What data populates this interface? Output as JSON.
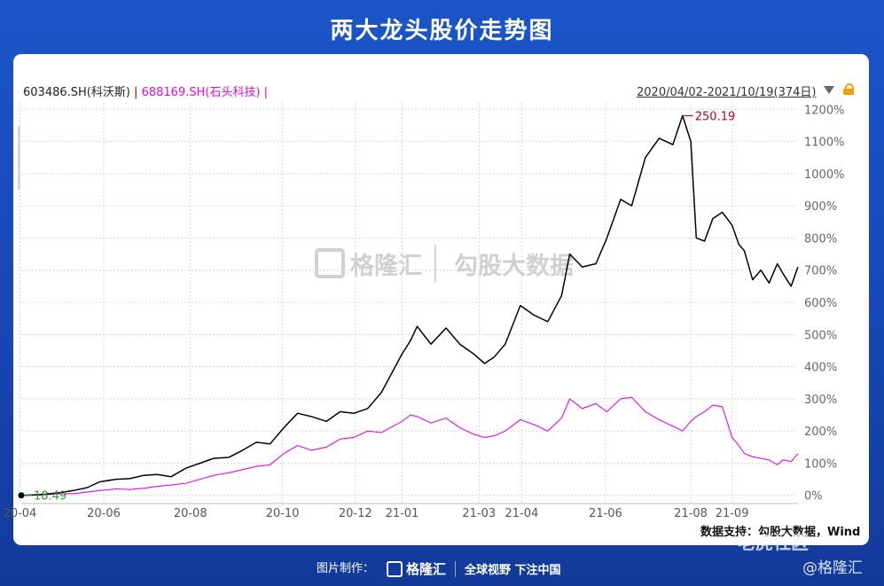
{
  "page": {
    "title": "两大龙头股价走势图",
    "range_label": "2020/04/02-2021/10/19(374日)",
    "source": "数据支持：勾股大数据，Wind",
    "footer_made": "图片制作：",
    "footer_brand": "格隆汇",
    "footer_slogan": "全球视野 下注中国",
    "watermark_mid_brand": "格隆汇",
    "watermark_mid_data": "勾股大数据",
    "watermark_right": "@格隆汇",
    "watermark_bottom": "老虎社区",
    "colors": {
      "series1": "#000000",
      "series2": "#e20be0",
      "max_label": "#c0001a",
      "min_label": "#2e9e2e",
      "bg": "#1a55c8"
    }
  },
  "chart_data": {
    "type": "line",
    "series": [
      {
        "name": "603486.SH(科沃斯)",
        "legend": "603486.SH(科沃斯) |",
        "color": "#000000",
        "points": [
          [
            "2020-04-02",
            0
          ],
          [
            "2020-04-15",
            2
          ],
          [
            "2020-04-30",
            8
          ],
          [
            "2020-05-10",
            15
          ],
          [
            "2020-05-20",
            24
          ],
          [
            "2020-05-29",
            42
          ],
          [
            "2020-06-10",
            50
          ],
          [
            "2020-06-20",
            52
          ],
          [
            "2020-06-30",
            62
          ],
          [
            "2020-07-10",
            65
          ],
          [
            "2020-07-20",
            58
          ],
          [
            "2020-07-31",
            85
          ],
          [
            "2020-08-10",
            100
          ],
          [
            "2020-08-20",
            115
          ],
          [
            "2020-08-31",
            118
          ],
          [
            "2020-09-10",
            140
          ],
          [
            "2020-09-20",
            165
          ],
          [
            "2020-09-30",
            160
          ],
          [
            "2020-10-10",
            210
          ],
          [
            "2020-10-20",
            255
          ],
          [
            "2020-10-30",
            245
          ],
          [
            "2020-11-10",
            230
          ],
          [
            "2020-11-20",
            260
          ],
          [
            "2020-11-30",
            255
          ],
          [
            "2020-12-10",
            270
          ],
          [
            "2020-12-20",
            320
          ],
          [
            "2021-01-04",
            440
          ],
          [
            "2021-01-10",
            480
          ],
          [
            "2021-01-15",
            525
          ],
          [
            "2021-01-25",
            470
          ],
          [
            "2021-02-05",
            520
          ],
          [
            "2021-02-15",
            470
          ],
          [
            "2021-02-25",
            440
          ],
          [
            "2021-03-05",
            410
          ],
          [
            "2021-03-12",
            430
          ],
          [
            "2021-03-20",
            470
          ],
          [
            "2021-03-31",
            590
          ],
          [
            "2021-04-10",
            560
          ],
          [
            "2021-04-20",
            540
          ],
          [
            "2021-04-30",
            620
          ],
          [
            "2021-05-06",
            750
          ],
          [
            "2021-05-15",
            710
          ],
          [
            "2021-05-25",
            720
          ],
          [
            "2021-06-02",
            800
          ],
          [
            "2021-06-12",
            920
          ],
          [
            "2021-06-20",
            900
          ],
          [
            "2021-06-30",
            1050
          ],
          [
            "2021-07-10",
            1110
          ],
          [
            "2021-07-20",
            1090
          ],
          [
            "2021-07-27",
            1180
          ],
          [
            "2021-08-02",
            1100
          ],
          [
            "2021-08-06",
            800
          ],
          [
            "2021-08-12",
            790
          ],
          [
            "2021-08-18",
            860
          ],
          [
            "2021-08-25",
            880
          ],
          [
            "2021-09-01",
            840
          ],
          [
            "2021-09-06",
            780
          ],
          [
            "2021-09-10",
            760
          ],
          [
            "2021-09-16",
            670
          ],
          [
            "2021-09-22",
            700
          ],
          [
            "2021-09-28",
            660
          ],
          [
            "2021-10-04",
            720
          ],
          [
            "2021-10-08",
            690
          ],
          [
            "2021-10-14",
            650
          ],
          [
            "2021-10-19",
            710
          ]
        ]
      },
      {
        "name": "688169.SH(石头科技)",
        "legend": "688169.SH(石头科技) |",
        "color": "#e20be0",
        "points": [
          [
            "2020-04-02",
            0
          ],
          [
            "2020-04-15",
            1
          ],
          [
            "2020-04-30",
            5
          ],
          [
            "2020-05-10",
            5
          ],
          [
            "2020-05-20",
            10
          ],
          [
            "2020-05-29",
            15
          ],
          [
            "2020-06-10",
            20
          ],
          [
            "2020-06-20",
            18
          ],
          [
            "2020-06-30",
            22
          ],
          [
            "2020-07-10",
            28
          ],
          [
            "2020-07-20",
            32
          ],
          [
            "2020-07-31",
            38
          ],
          [
            "2020-08-10",
            50
          ],
          [
            "2020-08-20",
            62
          ],
          [
            "2020-08-31",
            70
          ],
          [
            "2020-09-10",
            80
          ],
          [
            "2020-09-20",
            90
          ],
          [
            "2020-09-30",
            95
          ],
          [
            "2020-10-10",
            130
          ],
          [
            "2020-10-20",
            155
          ],
          [
            "2020-10-30",
            140
          ],
          [
            "2020-11-10",
            150
          ],
          [
            "2020-11-20",
            175
          ],
          [
            "2020-11-30",
            180
          ],
          [
            "2020-12-10",
            200
          ],
          [
            "2020-12-20",
            195
          ],
          [
            "2021-01-04",
            230
          ],
          [
            "2021-01-10",
            250
          ],
          [
            "2021-01-15",
            245
          ],
          [
            "2021-01-25",
            225
          ],
          [
            "2021-02-05",
            240
          ],
          [
            "2021-02-15",
            210
          ],
          [
            "2021-02-25",
            190
          ],
          [
            "2021-03-05",
            180
          ],
          [
            "2021-03-12",
            185
          ],
          [
            "2021-03-20",
            200
          ],
          [
            "2021-03-31",
            235
          ],
          [
            "2021-04-10",
            220
          ],
          [
            "2021-04-20",
            200
          ],
          [
            "2021-04-30",
            240
          ],
          [
            "2021-05-06",
            300
          ],
          [
            "2021-05-15",
            270
          ],
          [
            "2021-05-25",
            285
          ],
          [
            "2021-06-02",
            260
          ],
          [
            "2021-06-12",
            300
          ],
          [
            "2021-06-20",
            305
          ],
          [
            "2021-06-30",
            260
          ],
          [
            "2021-07-10",
            235
          ],
          [
            "2021-07-20",
            215
          ],
          [
            "2021-07-27",
            200
          ],
          [
            "2021-08-02",
            230
          ],
          [
            "2021-08-06",
            245
          ],
          [
            "2021-08-12",
            260
          ],
          [
            "2021-08-18",
            280
          ],
          [
            "2021-08-25",
            275
          ],
          [
            "2021-09-01",
            180
          ],
          [
            "2021-09-06",
            155
          ],
          [
            "2021-09-10",
            130
          ],
          [
            "2021-09-16",
            120
          ],
          [
            "2021-09-22",
            115
          ],
          [
            "2021-09-28",
            110
          ],
          [
            "2021-10-04",
            95
          ],
          [
            "2021-10-08",
            110
          ],
          [
            "2021-10-14",
            105
          ],
          [
            "2021-10-19",
            130
          ]
        ]
      }
    ],
    "x_ticks": [
      {
        "label": "20-04",
        "date": "2020-04-01"
      },
      {
        "label": "20-06",
        "date": "2020-06-01"
      },
      {
        "label": "20-08",
        "date": "2020-08-03"
      },
      {
        "label": "20-10",
        "date": "2020-10-09"
      },
      {
        "label": "20-12",
        "date": "2020-12-01"
      },
      {
        "label": "21-01",
        "date": "2021-01-04"
      },
      {
        "label": "21-03",
        "date": "2021-03-01"
      },
      {
        "label": "21-04",
        "date": "2021-04-01"
      },
      {
        "label": "21-06",
        "date": "2021-06-01"
      },
      {
        "label": "21-08",
        "date": "2021-08-02"
      },
      {
        "label": "21-09",
        "date": "2021-09-01"
      }
    ],
    "y_ticks": [
      0,
      100,
      200,
      300,
      400,
      500,
      600,
      700,
      800,
      900,
      1000,
      1100,
      1200
    ],
    "y_tick_labels": [
      "0%",
      "100%",
      "200%",
      "300%",
      "400%",
      "500%",
      "600%",
      "700%",
      "800%",
      "900%",
      "1000%",
      "1100%",
      "1200%"
    ],
    "xlim": [
      "2020-04-02",
      "2021-10-19"
    ],
    "ylim": [
      -20,
      1220
    ],
    "unit": "%",
    "grid": true,
    "annotations": [
      {
        "label": "250.19",
        "date": "2021-07-27",
        "value": 1180,
        "color": "#c0001a"
      },
      {
        "label": "18.49",
        "date": "2020-04-02",
        "value": 0,
        "color": "#2e9e2e"
      }
    ]
  }
}
